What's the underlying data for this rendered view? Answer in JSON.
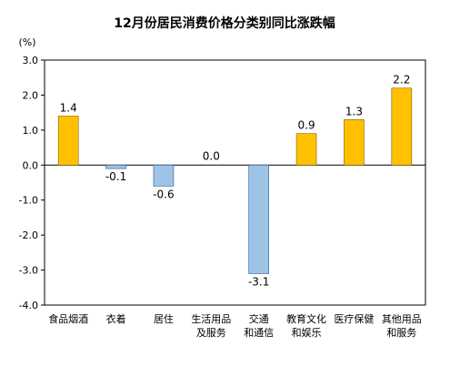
{
  "chart_data": {
    "type": "bar",
    "title": "12月份居民消费价格分类别同比涨跌幅",
    "unit": "(%)",
    "ylim": [
      -4.0,
      3.0
    ],
    "yticks": [
      "3.0",
      "2.0",
      "1.0",
      "0.0",
      "-1.0",
      "-2.0",
      "-3.0",
      "-4.0"
    ],
    "categories": [
      [
        "食品烟酒"
      ],
      [
        "衣着"
      ],
      [
        "居住"
      ],
      [
        "生活用品",
        "及服务"
      ],
      [
        "交通",
        "和通信"
      ],
      [
        "教育文化",
        "和娱乐"
      ],
      [
        "医疗保健"
      ],
      [
        "其他用品",
        "和服务"
      ]
    ],
    "values": [
      1.4,
      -0.1,
      -0.6,
      0.0,
      -3.1,
      0.9,
      1.3,
      2.2
    ],
    "data_labels": [
      "1.4",
      "-0.1",
      "-0.6",
      "0.0",
      "-3.1",
      "0.9",
      "1.3",
      "2.2"
    ],
    "colors": {
      "positive_fill": "#FFC000",
      "positive_stroke": "#7F6000",
      "negative_fill": "#9DC3E6",
      "negative_stroke": "#2F5597",
      "axis": "#000000"
    }
  }
}
